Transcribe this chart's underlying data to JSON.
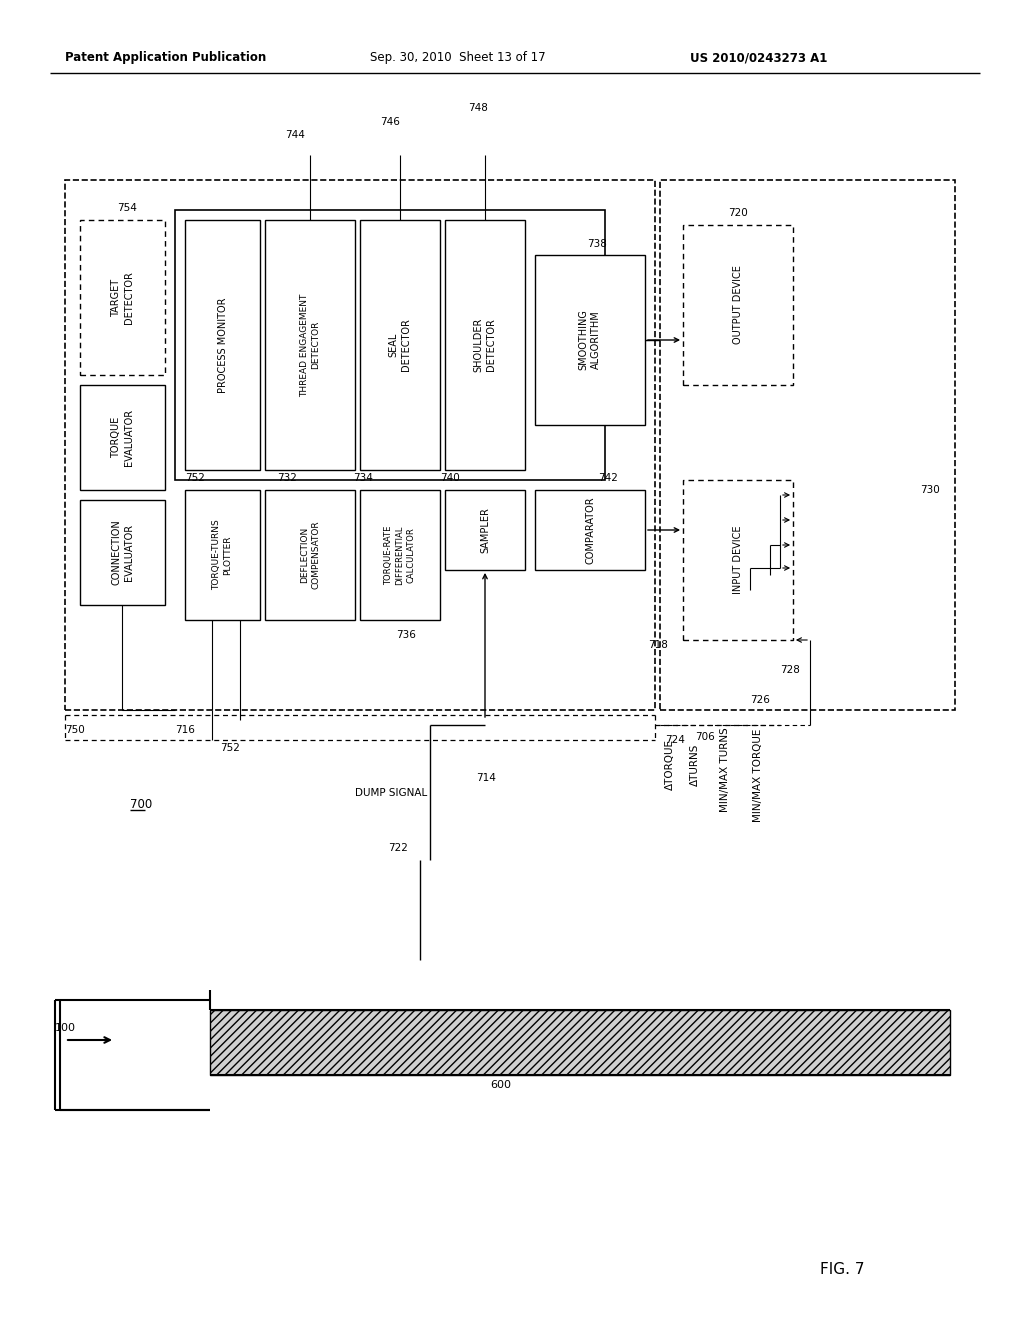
{
  "title_left": "Patent Application Publication",
  "title_mid": "Sep. 30, 2010  Sheet 13 of 17",
  "title_right": "US 2010/0243273 A1",
  "fig_label": "FIG. 7",
  "fig_number": "700",
  "background_color": "#ffffff"
}
